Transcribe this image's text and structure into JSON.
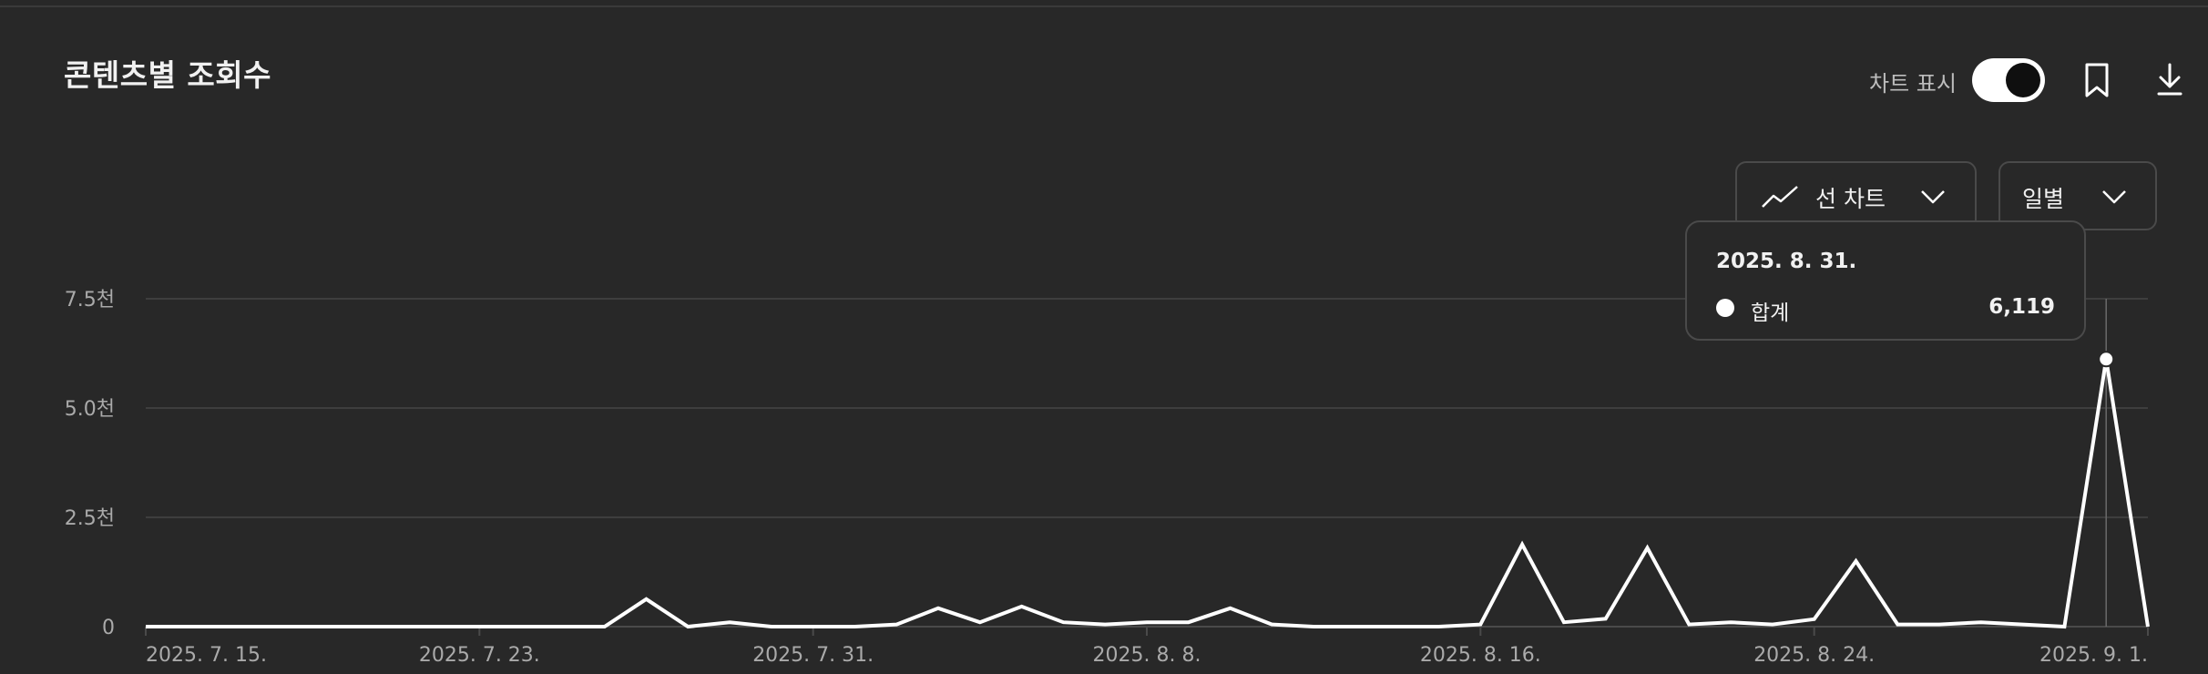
{
  "header": {
    "title": "콘텐츠별 조회수",
    "chart_toggle_label": "차트 표시",
    "chart_toggle_on": true
  },
  "controls": {
    "chart_type_label": "선 차트",
    "period_label": "일별"
  },
  "icons": {
    "bookmark": "bookmark-icon",
    "download": "download-icon",
    "line_chart": "line-chart-icon",
    "chevron": "chevron-down-icon"
  },
  "colors": {
    "background": "#282828",
    "line": "#ffffff",
    "grid": "#3e3e3e",
    "tick_text": "#aaaaaa"
  },
  "tooltip": {
    "date": "2025. 8. 31.",
    "series_name": "합계",
    "value": "6,119"
  },
  "chart_data": {
    "type": "line",
    "title": "",
    "xlabel": "",
    "ylabel": "",
    "ylim": [
      0,
      7500
    ],
    "y_ticks": [
      {
        "value": 0,
        "label": "0"
      },
      {
        "value": 2500,
        "label": "2.5천"
      },
      {
        "value": 5000,
        "label": "5.0천"
      },
      {
        "value": 7500,
        "label": "7.5천"
      }
    ],
    "x_start": "2025-07-15",
    "x_tick_labels": [
      {
        "date": "2025-07-15",
        "label": "2025. 7. 15."
      },
      {
        "date": "2025-07-23",
        "label": "2025. 7. 23."
      },
      {
        "date": "2025-07-31",
        "label": "2025. 7. 31."
      },
      {
        "date": "2025-08-08",
        "label": "2025. 8. 8."
      },
      {
        "date": "2025-08-16",
        "label": "2025. 8. 16."
      },
      {
        "date": "2025-08-24",
        "label": "2025. 8. 24."
      },
      {
        "date": "2025-09-01",
        "label": "2025. 9. 1."
      }
    ],
    "highlight_date": "2025-08-31",
    "grid": true,
    "series": [
      {
        "name": "합계",
        "x": [
          "2025-07-15",
          "2025-07-16",
          "2025-07-17",
          "2025-07-18",
          "2025-07-19",
          "2025-07-20",
          "2025-07-21",
          "2025-07-22",
          "2025-07-23",
          "2025-07-24",
          "2025-07-25",
          "2025-07-26",
          "2025-07-27",
          "2025-07-28",
          "2025-07-29",
          "2025-07-30",
          "2025-07-31",
          "2025-08-01",
          "2025-08-02",
          "2025-08-03",
          "2025-08-04",
          "2025-08-05",
          "2025-08-06",
          "2025-08-07",
          "2025-08-08",
          "2025-08-09",
          "2025-08-10",
          "2025-08-11",
          "2025-08-12",
          "2025-08-13",
          "2025-08-14",
          "2025-08-15",
          "2025-08-16",
          "2025-08-17",
          "2025-08-18",
          "2025-08-19",
          "2025-08-20",
          "2025-08-21",
          "2025-08-22",
          "2025-08-23",
          "2025-08-24",
          "2025-08-25",
          "2025-08-26",
          "2025-08-27",
          "2025-08-28",
          "2025-08-29",
          "2025-08-30",
          "2025-08-31",
          "2025-09-01"
        ],
        "values": [
          0,
          0,
          0,
          0,
          0,
          0,
          0,
          0,
          0,
          0,
          0,
          0,
          630,
          0,
          100,
          0,
          0,
          0,
          50,
          420,
          100,
          460,
          100,
          50,
          100,
          100,
          420,
          50,
          0,
          0,
          0,
          0,
          50,
          1880,
          100,
          180,
          1800,
          50,
          100,
          50,
          170,
          1500,
          50,
          50,
          100,
          50,
          0,
          6119,
          0
        ]
      }
    ]
  }
}
